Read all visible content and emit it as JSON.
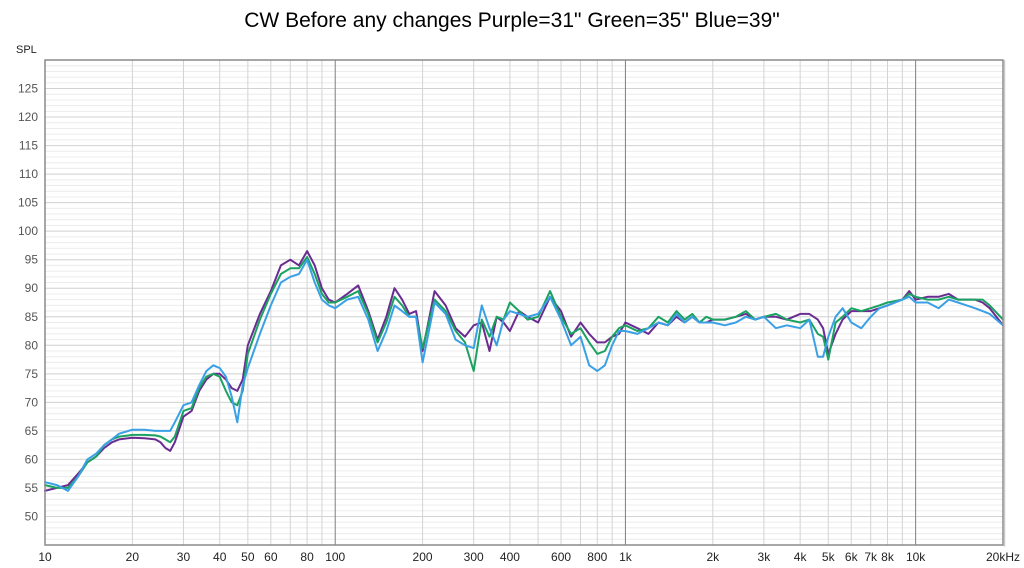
{
  "chart_data": {
    "type": "line",
    "title": "CW Before any changes Purple=31\" Green=35\" Blue=39\"",
    "ylabel": "SPL",
    "xscale": "log",
    "xlim": [
      10,
      20000
    ],
    "ylim": [
      45,
      130
    ],
    "grid": true,
    "y_ticks": [
      50,
      55,
      60,
      65,
      70,
      75,
      80,
      85,
      90,
      95,
      100,
      105,
      110,
      115,
      120,
      125
    ],
    "x_tick_labels": [
      {
        "v": 10,
        "t": "10"
      },
      {
        "v": 20,
        "t": "20"
      },
      {
        "v": 30,
        "t": "30"
      },
      {
        "v": 40,
        "t": "40"
      },
      {
        "v": 50,
        "t": "50"
      },
      {
        "v": 60,
        "t": "60"
      },
      {
        "v": 80,
        "t": "80"
      },
      {
        "v": 100,
        "t": "100"
      },
      {
        "v": 200,
        "t": "200"
      },
      {
        "v": 300,
        "t": "300"
      },
      {
        "v": 400,
        "t": "400"
      },
      {
        "v": 600,
        "t": "600"
      },
      {
        "v": 800,
        "t": "800"
      },
      {
        "v": 1000,
        "t": "1k"
      },
      {
        "v": 2000,
        "t": "2k"
      },
      {
        "v": 3000,
        "t": "3k"
      },
      {
        "v": 4000,
        "t": "4k"
      },
      {
        "v": 5000,
        "t": "5k"
      },
      {
        "v": 6000,
        "t": "6k"
      },
      {
        "v": 7000,
        "t": "7k"
      },
      {
        "v": 8000,
        "t": "8k"
      },
      {
        "v": 10000,
        "t": "10k"
      },
      {
        "v": 20000,
        "t": "20kHz"
      }
    ],
    "colors": {
      "purple": "#6a2c91",
      "green": "#1aa260",
      "blue": "#3aa0e6",
      "grid": "#d3d3d3",
      "major_grid": "#7f7f7f"
    },
    "series": [
      {
        "key": "purple",
        "x": [
          10,
          11,
          12,
          13,
          14,
          15,
          16,
          17,
          18,
          20,
          22,
          24,
          25,
          26,
          27,
          28,
          30,
          32,
          34,
          36,
          38,
          40,
          42,
          44,
          46,
          48,
          50,
          55,
          60,
          65,
          70,
          75,
          80,
          85,
          90,
          95,
          100,
          110,
          120,
          130,
          140,
          150,
          160,
          170,
          180,
          190,
          200,
          220,
          240,
          260,
          280,
          300,
          320,
          340,
          360,
          380,
          400,
          430,
          460,
          500,
          550,
          600,
          650,
          700,
          750,
          800,
          850,
          900,
          950,
          1000,
          1100,
          1200,
          1300,
          1400,
          1500,
          1600,
          1700,
          1800,
          1900,
          2000,
          2200,
          2400,
          2600,
          2800,
          3000,
          3300,
          3600,
          4000,
          4300,
          4600,
          4800,
          5000,
          5300,
          5600,
          6000,
          6500,
          7000,
          7500,
          8000,
          9000,
          9500,
          10000,
          11000,
          12000,
          13000,
          14000,
          15000,
          16000,
          17000,
          18000,
          20000
        ],
        "y": [
          54.5,
          55,
          55.5,
          57.5,
          59.5,
          60.5,
          62,
          63,
          63.5,
          63.8,
          63.7,
          63.5,
          63,
          62,
          61.5,
          63,
          67.5,
          68.5,
          72,
          74,
          75,
          75,
          74,
          72.5,
          72,
          74,
          80,
          85.5,
          89.5,
          94,
          95,
          94,
          96.5,
          94,
          90,
          88,
          87.5,
          89,
          90.5,
          86,
          81,
          85,
          90,
          88,
          85.5,
          86,
          79,
          89.5,
          87,
          83,
          81.5,
          83.5,
          84,
          79,
          85,
          84,
          82.5,
          86,
          85,
          84,
          88.5,
          86,
          81.5,
          84,
          82,
          80.5,
          80.5,
          81.5,
          82,
          84,
          83,
          82,
          84,
          83.5,
          85,
          84,
          85,
          84,
          84,
          84.5,
          84.5,
          85,
          85.5,
          84.5,
          85,
          85,
          84.5,
          85.5,
          85.5,
          84.5,
          83,
          78.5,
          82,
          84.5,
          86,
          86,
          86,
          86.5,
          87,
          88,
          89.5,
          88,
          88.5,
          88.5,
          89,
          88,
          88,
          88,
          87.5,
          86.5,
          83.5
        ]
      },
      {
        "key": "green",
        "x": [
          10,
          11,
          12,
          13,
          14,
          15,
          16,
          17,
          18,
          20,
          22,
          24,
          25,
          26,
          27,
          28,
          30,
          32,
          34,
          36,
          38,
          40,
          42,
          44,
          46,
          48,
          50,
          55,
          60,
          65,
          70,
          75,
          80,
          85,
          90,
          95,
          100,
          110,
          120,
          130,
          140,
          150,
          160,
          170,
          180,
          190,
          200,
          220,
          240,
          260,
          280,
          300,
          320,
          340,
          360,
          380,
          400,
          430,
          460,
          500,
          550,
          600,
          650,
          700,
          750,
          800,
          850,
          900,
          950,
          1000,
          1100,
          1200,
          1300,
          1400,
          1500,
          1600,
          1700,
          1800,
          1900,
          2000,
          2200,
          2400,
          2600,
          2800,
          3000,
          3300,
          3600,
          4000,
          4300,
          4600,
          4800,
          5000,
          5300,
          5600,
          6000,
          6500,
          7000,
          7500,
          8000,
          9000,
          9500,
          10000,
          11000,
          12000,
          13000,
          14000,
          15000,
          16000,
          17000,
          18000,
          20000
        ],
        "y": [
          55.5,
          55,
          55,
          57,
          59.5,
          60.5,
          62.5,
          63.5,
          64,
          64.3,
          64.3,
          64.2,
          64,
          63.5,
          63,
          64,
          68.5,
          69,
          72.5,
          74.5,
          75,
          74.5,
          72,
          70,
          69.5,
          72,
          78.5,
          84.5,
          89,
          92.5,
          93.5,
          93.5,
          95.5,
          92.5,
          89,
          87.5,
          87.5,
          88.5,
          89.5,
          85.5,
          80.5,
          84,
          88.5,
          87,
          85,
          85,
          79.5,
          88,
          86,
          82.5,
          80.5,
          75.5,
          84.5,
          81.5,
          85,
          84.5,
          87.5,
          86,
          84.5,
          85,
          89.5,
          85,
          82,
          83,
          80.5,
          78.5,
          79,
          81.5,
          83,
          83.5,
          82.5,
          83,
          85,
          84,
          86,
          84.5,
          85.5,
          84,
          85,
          84.5,
          84.5,
          85,
          86,
          84.5,
          85,
          85.5,
          84.5,
          84,
          84.5,
          82,
          81.5,
          77.5,
          84,
          85,
          86.5,
          86,
          86.5,
          87,
          87.5,
          88,
          89,
          88.5,
          88,
          88,
          88.5,
          88,
          88,
          88,
          88,
          87,
          84.5
        ]
      },
      {
        "key": "blue",
        "x": [
          10,
          11,
          12,
          13,
          14,
          15,
          16,
          17,
          18,
          20,
          22,
          24,
          25,
          26,
          27,
          28,
          30,
          32,
          34,
          36,
          38,
          40,
          42,
          44,
          46,
          48,
          50,
          55,
          60,
          65,
          70,
          75,
          80,
          85,
          90,
          95,
          100,
          110,
          120,
          130,
          140,
          150,
          160,
          170,
          180,
          190,
          200,
          220,
          240,
          260,
          280,
          300,
          320,
          340,
          360,
          380,
          400,
          430,
          460,
          500,
          550,
          600,
          650,
          700,
          750,
          800,
          850,
          900,
          950,
          1000,
          1100,
          1200,
          1300,
          1400,
          1500,
          1600,
          1700,
          1800,
          1900,
          2000,
          2200,
          2400,
          2600,
          2800,
          3000,
          3300,
          3600,
          4000,
          4300,
          4600,
          4800,
          5000,
          5300,
          5600,
          6000,
          6500,
          7000,
          7500,
          8000,
          9000,
          9500,
          10000,
          11000,
          12000,
          13000,
          14000,
          15000,
          16000,
          17000,
          18000,
          20000
        ],
        "y": [
          56,
          55.5,
          54.5,
          57,
          60,
          61,
          62.5,
          63.5,
          64.5,
          65.2,
          65.2,
          65,
          65,
          65,
          65,
          66.5,
          69.5,
          70,
          73,
          75.5,
          76.5,
          76,
          74.5,
          71,
          66.5,
          73,
          76,
          82,
          87,
          91,
          92,
          92.5,
          95,
          91,
          88,
          87,
          86.5,
          88,
          88.5,
          84.5,
          79,
          82.5,
          87,
          86,
          85,
          85,
          77,
          87.5,
          85.5,
          81,
          80,
          79.5,
          87,
          83,
          80,
          84.5,
          86,
          85.5,
          85,
          85.5,
          88.5,
          84.5,
          80,
          81.5,
          76.5,
          75.5,
          76.5,
          80,
          82.5,
          82.5,
          82,
          83,
          84,
          83.5,
          85.5,
          84,
          85,
          84,
          84,
          84,
          83.5,
          84,
          85,
          84.5,
          85,
          83,
          83.5,
          83,
          84.5,
          78,
          78,
          81.5,
          85,
          86.5,
          84,
          83,
          85,
          86.5,
          87,
          88,
          88.5,
          87.5,
          87.5,
          86.5,
          88,
          87.5,
          87,
          86.5,
          86,
          85.5,
          83.5
        ]
      }
    ]
  }
}
